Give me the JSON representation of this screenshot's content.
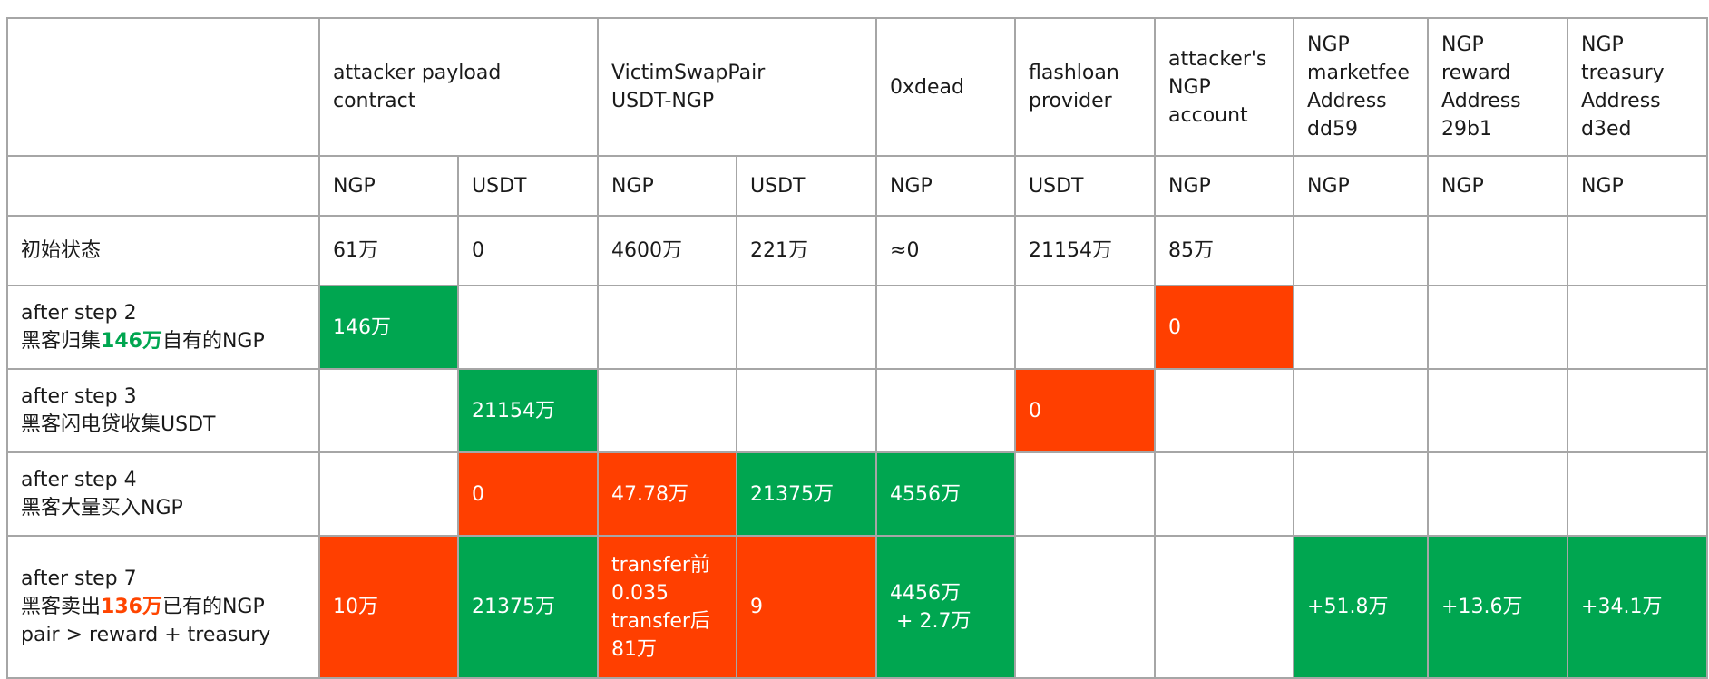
{
  "headers": {
    "attacker_payload": [
      "attacker payload",
      "contract"
    ],
    "victim_pair": [
      "VictimSwapPair",
      "USDT-NGP"
    ],
    "dead": [
      "0xdead"
    ],
    "flashloan": [
      "flashloan",
      "provider"
    ],
    "attacker_account": [
      "attacker's",
      "NGP",
      "account"
    ],
    "marketfee": [
      "NGP",
      "marketfee",
      "Address",
      "dd59"
    ],
    "reward": [
      "NGP",
      "reward",
      "Address",
      "29b1"
    ],
    "treasury": [
      "NGP",
      "treasury",
      "Address",
      "d3ed"
    ]
  },
  "tokens": [
    "NGP",
    "USDT",
    "NGP",
    "USDT",
    "NGP",
    "USDT",
    "NGP",
    "NGP",
    "NGP",
    "NGP"
  ],
  "rows": {
    "init": {
      "label": "初始状态",
      "cells": [
        "61万",
        "0",
        "4600万",
        "221万",
        "≈0",
        "21154万",
        "85万",
        "",
        "",
        ""
      ]
    },
    "step2": {
      "label_line1": "after step 2",
      "label_prefix": "黑客归集",
      "label_highlight": "146万",
      "label_suffix": "自有的NGP",
      "cells": [
        "146万",
        "",
        "",
        "",
        "",
        "",
        "0",
        "",
        "",
        ""
      ]
    },
    "step3": {
      "label_line1": "after step 3",
      "label_line2": "黑客闪电贷收集USDT",
      "cells": [
        "",
        "21154万",
        "",
        "",
        "",
        "0",
        "",
        "",
        "",
        ""
      ]
    },
    "step4": {
      "label_line1": "after step 4",
      "label_line2": "黑客大量买入NGP",
      "cells": [
        "",
        "0",
        "47.78万",
        "21375万",
        "4556万",
        "",
        "",
        "",
        "",
        ""
      ]
    },
    "step7": {
      "label_line1": "after step 7",
      "label_prefix": "黑客卖出",
      "label_highlight": "136万",
      "label_suffix": "已有的NGP",
      "label_line3": "pair > reward + treasury",
      "cells": [
        "10万",
        "21375万",
        [
          "transfer前",
          "0.035",
          "transfer后",
          "81万"
        ],
        "9",
        [
          "4456万",
          " + 2.7万"
        ],
        "",
        "",
        "+51.8万",
        "+13.6万",
        "+34.1万"
      ]
    }
  },
  "colors": {
    "increase": "#00a650",
    "decrease": "#ff3f00",
    "grid": "#a6a6a6"
  }
}
